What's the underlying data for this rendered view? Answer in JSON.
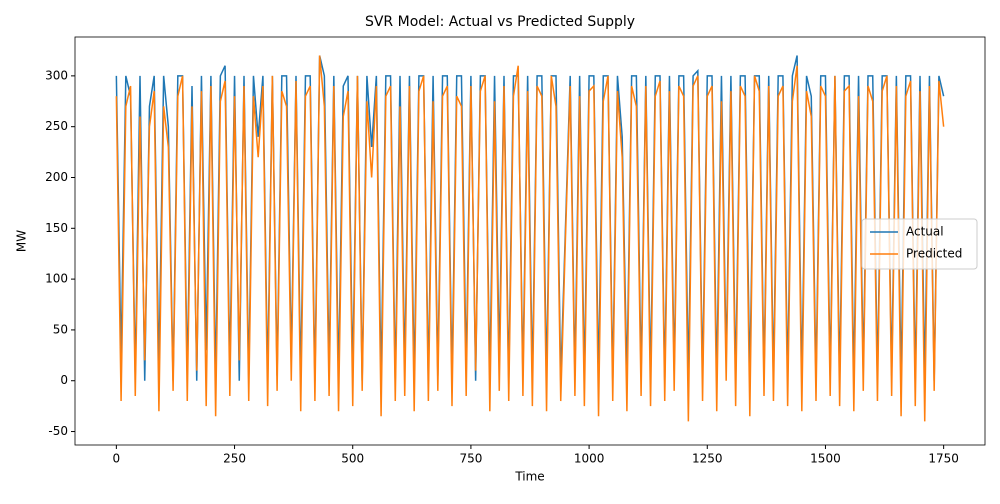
{
  "chart_data": {
    "type": "line",
    "title": "SVR Model: Actual vs Predicted Supply",
    "x_label": "Time",
    "y_label": "MW",
    "x": [
      0,
      10,
      20,
      30,
      40,
      50,
      60,
      70,
      80,
      90,
      100,
      110,
      120,
      130,
      140,
      150,
      160,
      170,
      180,
      190,
      200,
      210,
      220,
      230,
      240,
      250,
      260,
      270,
      280,
      290,
      300,
      310,
      320,
      330,
      340,
      350,
      360,
      370,
      380,
      390,
      400,
      410,
      420,
      430,
      440,
      450,
      460,
      470,
      480,
      490,
      500,
      510,
      520,
      530,
      540,
      550,
      560,
      570,
      580,
      590,
      600,
      610,
      620,
      630,
      640,
      650,
      660,
      670,
      680,
      690,
      700,
      710,
      720,
      730,
      740,
      750,
      760,
      770,
      780,
      790,
      800,
      810,
      820,
      830,
      840,
      850,
      860,
      870,
      880,
      890,
      900,
      910,
      920,
      930,
      940,
      950,
      960,
      970,
      980,
      990,
      1000,
      1010,
      1020,
      1030,
      1040,
      1050,
      1060,
      1070,
      1080,
      1090,
      1100,
      1110,
      1120,
      1130,
      1140,
      1150,
      1160,
      1170,
      1180,
      1190,
      1200,
      1210,
      1220,
      1230,
      1240,
      1250,
      1260,
      1270,
      1280,
      1290,
      1300,
      1310,
      1320,
      1330,
      1340,
      1350,
      1360,
      1370,
      1380,
      1390,
      1400,
      1410,
      1420,
      1430,
      1440,
      1450,
      1460,
      1470,
      1480,
      1490,
      1500,
      1510,
      1520,
      1530,
      1540,
      1550,
      1560,
      1570,
      1580,
      1590,
      1600,
      1610,
      1620,
      1630,
      1640,
      1650,
      1660,
      1670,
      1680,
      1690,
      1700,
      1710,
      1720,
      1730,
      1740,
      1750
    ],
    "series": [
      {
        "name": "Actual",
        "color": "#1f77b4",
        "values": [
          300,
          20,
          300,
          280,
          5,
          300,
          0,
          270,
          300,
          10,
          300,
          250,
          0,
          300,
          300,
          5,
          290,
          0,
          300,
          30,
          300,
          0,
          300,
          310,
          10,
          300,
          0,
          300,
          2,
          300,
          240,
          300,
          0,
          300,
          5,
          300,
          300,
          20,
          300,
          0,
          300,
          300,
          0,
          320,
          300,
          10,
          300,
          0,
          290,
          300,
          5,
          300,
          0,
          300,
          230,
          300,
          0,
          300,
          300,
          0,
          300,
          10,
          300,
          0,
          300,
          300,
          0,
          300,
          5,
          300,
          300,
          0,
          300,
          300,
          10,
          300,
          0,
          300,
          300,
          0,
          300,
          20,
          300,
          0,
          300,
          300,
          5,
          300,
          0,
          300,
          300,
          0,
          300,
          300,
          0,
          150,
          300,
          5,
          300,
          0,
          300,
          300,
          0,
          300,
          300,
          0,
          300,
          240,
          0,
          300,
          300,
          5,
          300,
          0,
          300,
          300,
          0,
          300,
          10,
          300,
          300,
          0,
          300,
          305,
          0,
          300,
          300,
          0,
          300,
          20,
          300,
          0,
          300,
          300,
          0,
          300,
          300,
          5,
          300,
          0,
          300,
          300,
          0,
          300,
          320,
          0,
          300,
          280,
          0,
          300,
          300,
          5,
          300,
          0,
          300,
          300,
          0,
          300,
          10,
          300,
          300,
          0,
          300,
          300,
          5,
          300,
          0,
          300,
          300,
          0,
          300,
          0,
          300,
          0,
          300,
          280
        ]
      },
      {
        "name": "Predicted",
        "color": "#ff7f0e",
        "values": [
          280,
          -20,
          270,
          290,
          -15,
          260,
          20,
          250,
          285,
          -30,
          270,
          230,
          -10,
          280,
          300,
          -20,
          270,
          10,
          285,
          -25,
          290,
          -35,
          275,
          295,
          -15,
          280,
          20,
          290,
          -20,
          280,
          220,
          290,
          -25,
          300,
          -10,
          285,
          270,
          0,
          295,
          -30,
          280,
          290,
          -20,
          320,
          270,
          -15,
          290,
          -30,
          260,
          285,
          -25,
          300,
          -10,
          275,
          200,
          290,
          -35,
          280,
          290,
          -20,
          270,
          -15,
          290,
          -30,
          285,
          300,
          -20,
          275,
          -10,
          280,
          290,
          -25,
          280,
          270,
          -15,
          290,
          10,
          285,
          300,
          -30,
          275,
          -10,
          290,
          -20,
          280,
          310,
          -15,
          285,
          -25,
          290,
          280,
          -30,
          300,
          270,
          -20,
          140,
          290,
          -15,
          280,
          -25,
          285,
          290,
          -35,
          275,
          300,
          -20,
          285,
          220,
          -30,
          290,
          270,
          -15,
          290,
          -25,
          280,
          295,
          -20,
          285,
          -10,
          290,
          280,
          -40,
          290,
          300,
          -20,
          280,
          290,
          -30,
          275,
          0,
          285,
          -25,
          290,
          280,
          -35,
          300,
          285,
          -15,
          290,
          -20,
          280,
          290,
          -25,
          275,
          310,
          -30,
          285,
          260,
          -20,
          290,
          280,
          -15,
          300,
          -25,
          285,
          290,
          -30,
          280,
          -10,
          290,
          275,
          -20,
          285,
          300,
          -15,
          290,
          -35,
          280,
          295,
          -25,
          285,
          -40,
          290,
          -10,
          295,
          250
        ]
      }
    ],
    "xlim": [
      -87.5,
      1837.5
    ],
    "xticks": [
      0,
      250,
      500,
      750,
      1000,
      1250,
      1500,
      1750
    ],
    "ylim": [
      -63.25,
      338.25
    ],
    "yticks": [
      -50,
      0,
      50,
      100,
      150,
      200,
      250,
      300
    ],
    "legend": "right"
  }
}
